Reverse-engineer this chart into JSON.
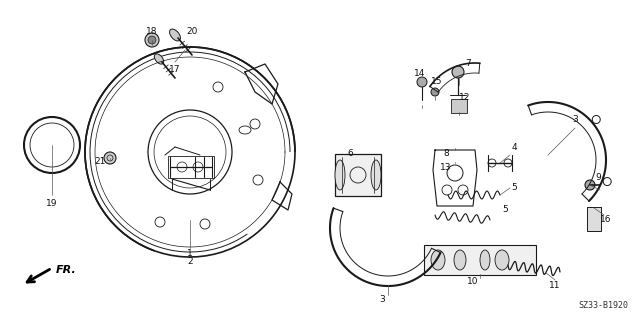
{
  "background_color": "#ffffff",
  "diagram_code": "SZ33-B1920",
  "fr_label": "FR.",
  "fig_width": 6.33,
  "fig_height": 3.2,
  "dpi": 100,
  "drawing_color": "#1a1a1a",
  "label_fontsize": 6.5,
  "text_color": "#111111"
}
